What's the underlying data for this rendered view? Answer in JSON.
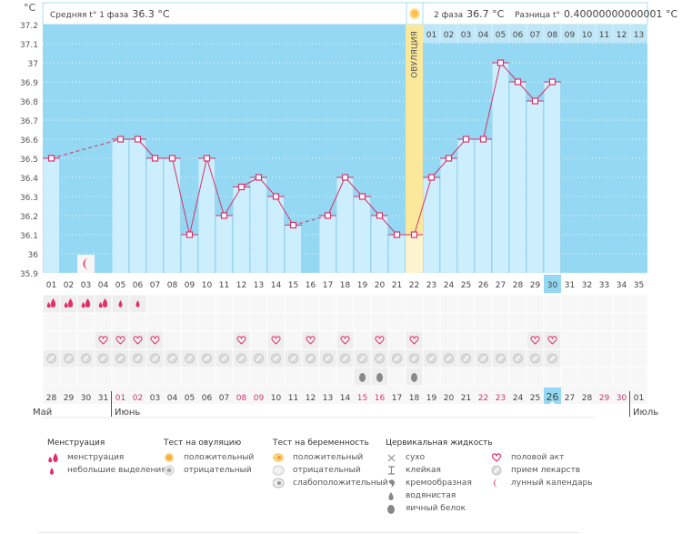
{
  "header": {
    "unit_label": "°C",
    "phase1_label": "Средняя t° 1 фаза",
    "phase1_value": "36.3 °C",
    "phase2_label": "2 фаза",
    "phase2_value": "36.7 °C",
    "diff_label": "Разница t°",
    "diff_value": "0.40000000000001 °C",
    "ovulation_label": "ОВУЛЯЦИЯ"
  },
  "colors": {
    "background_blue": "#94d8f3",
    "bar_fill": "#cdeefc",
    "line": "#d6336c",
    "ovulation": "#fbe89a",
    "ovulation_light": "#fdf4cf",
    "highlight": "#94d8f3",
    "red_date": "#d6336c"
  },
  "chart_data": {
    "type": "line",
    "title": "",
    "ylabel": "°C",
    "ylim": [
      35.9,
      37.2
    ],
    "yticks": [
      "37.2",
      "37.1",
      "37",
      "36.9",
      "36.8",
      "36.7",
      "36.6",
      "36.5",
      "36.4",
      "36.3",
      "36.2",
      "36.1",
      "36",
      "35.9"
    ],
    "cycle_days": [
      "01",
      "02",
      "03",
      "04",
      "05",
      "06",
      "07",
      "08",
      "09",
      "10",
      "11",
      "12",
      "13",
      "14",
      "15",
      "16",
      "17",
      "18",
      "19",
      "20",
      "21",
      "22",
      "23",
      "24",
      "25",
      "26",
      "27",
      "28",
      "29",
      "30",
      "31",
      "32",
      "33",
      "34",
      "35"
    ],
    "temperatures": [
      36.5,
      null,
      null,
      null,
      36.6,
      36.6,
      36.5,
      36.5,
      36.1,
      36.5,
      36.2,
      36.35,
      36.4,
      36.3,
      36.15,
      null,
      36.2,
      36.4,
      36.3,
      36.2,
      36.1,
      36.1,
      36.4,
      36.5,
      36.6,
      36.6,
      37.0,
      36.9,
      36.8,
      36.9,
      null,
      null,
      null,
      null,
      null
    ],
    "ovulation_day": "22",
    "current_day": "30",
    "phase2_day_labels": [
      "01",
      "02",
      "03",
      "04",
      "05",
      "06",
      "07",
      "08",
      "09",
      "10",
      "11",
      "12",
      "13"
    ],
    "moon_day": "03"
  },
  "symptoms": {
    "menstruation": [
      "heavy",
      "heavy",
      "heavy",
      "heavy",
      "light",
      "light",
      null,
      null,
      null,
      null,
      null,
      null,
      null,
      null,
      null,
      null,
      null,
      null,
      null,
      null,
      null,
      null,
      null,
      null,
      null,
      null,
      null,
      null,
      null,
      null,
      null,
      null,
      null,
      null,
      null
    ],
    "intercourse_days": [
      "04",
      "05",
      "06",
      "07",
      "12",
      "14",
      "16",
      "18",
      "20",
      "22",
      "29",
      "30"
    ],
    "medication_days_range": "01-30",
    "egg_white_days": [
      "19",
      "20",
      "22"
    ]
  },
  "calendar": {
    "dates": [
      "28",
      "29",
      "30",
      "31",
      "01",
      "02",
      "03",
      "04",
      "05",
      "06",
      "07",
      "08",
      "09",
      "10",
      "11",
      "12",
      "13",
      "14",
      "15",
      "16",
      "17",
      "18",
      "19",
      "20",
      "21",
      "22",
      "23",
      "24",
      "25",
      "26",
      "27",
      "28",
      "29",
      "30",
      "01"
    ],
    "weekend_indices": [
      4,
      5,
      11,
      12,
      18,
      19,
      25,
      26,
      32,
      33
    ],
    "today_index": 29,
    "months": {
      "may": "Май",
      "june": "Июнь",
      "july": "Июль"
    }
  },
  "legend": {
    "menstruation": {
      "title": "Менструация",
      "items": [
        "менструация",
        "небольшие выделения"
      ]
    },
    "ovulation_test": {
      "title": "Тест на овуляцию",
      "items": [
        "положительный",
        "отрицательный"
      ]
    },
    "pregnancy_test": {
      "title": "Тест на беременность",
      "items": [
        "положительный",
        "отрицательный",
        "слабоположительный"
      ]
    },
    "cervical_fluid": {
      "title": "Цервикальная жидкость",
      "items": [
        "сухо",
        "клейкая",
        "кремообразная",
        "водянистая",
        "яичный белок"
      ]
    },
    "other": {
      "items": [
        "половой акт",
        "прием лекарств",
        "лунный календарь"
      ]
    }
  }
}
